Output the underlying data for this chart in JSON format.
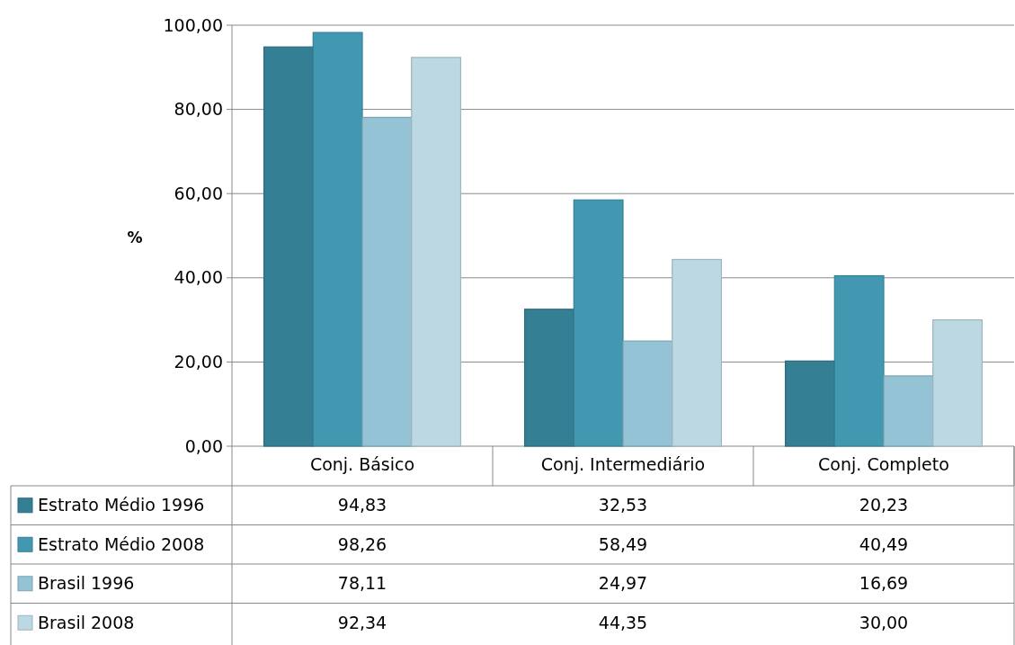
{
  "chart_data": {
    "type": "bar",
    "ylabel": "%",
    "categories": [
      "Conj. Básico",
      "Conj. Intermediário",
      "Conj. Completo"
    ],
    "series": [
      {
        "name": "Estrato Médio 1996",
        "color": "#357f94",
        "values": [
          94.83,
          32.53,
          20.23
        ],
        "value_labels": [
          "94,83",
          "32,53",
          "20,23"
        ]
      },
      {
        "name": "Estrato Médio 2008",
        "color": "#4298b0",
        "values": [
          98.26,
          58.49,
          40.49
        ],
        "value_labels": [
          "98,26",
          "58,49",
          "40,49"
        ]
      },
      {
        "name": "Brasil 1996",
        "color": "#93c3d4",
        "values": [
          78.11,
          24.97,
          16.69
        ],
        "value_labels": [
          "78,11",
          "24,97",
          "16,69"
        ]
      },
      {
        "name": "Brasil 2008",
        "color": "#bcd8e3",
        "values": [
          92.34,
          44.35,
          30.0
        ],
        "value_labels": [
          "92,34",
          "44,35",
          "30,00"
        ]
      }
    ],
    "ylim": [
      0,
      100
    ],
    "yticks": [
      {
        "value": 0,
        "label": "0,00"
      },
      {
        "value": 20,
        "label": "20,00"
      },
      {
        "value": 40,
        "label": "40,00"
      },
      {
        "value": 60,
        "label": "60,00"
      },
      {
        "value": 80,
        "label": "80,00"
      },
      {
        "value": 100,
        "label": "100,00"
      }
    ],
    "grid": "y",
    "legend": "bottom"
  }
}
